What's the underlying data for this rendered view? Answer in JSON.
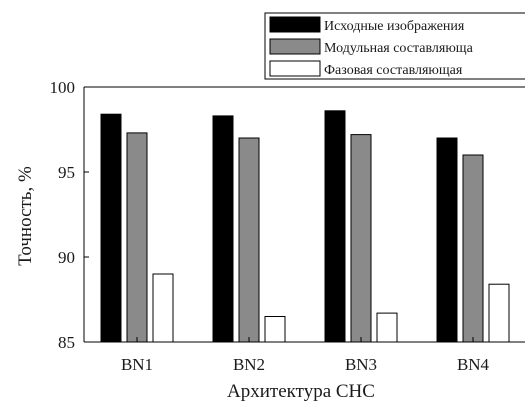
{
  "chart_data": {
    "type": "bar",
    "categories": [
      "BN1",
      "BN2",
      "BN3",
      "BN4"
    ],
    "series": [
      {
        "name": "Исходные изображения",
        "color": "#000000",
        "values": [
          98.4,
          98.3,
          98.6,
          97.0
        ]
      },
      {
        "name": "Модульная составляюща",
        "color": "#8a8a8a",
        "values": [
          97.3,
          97.0,
          97.2,
          96.0
        ]
      },
      {
        "name": "Фазовая составляющая",
        "color": "#ffffff",
        "values": [
          89.0,
          86.5,
          86.7,
          88.4
        ]
      }
    ],
    "xlabel": "Архитектура СНС",
    "ylabel": "Точность, %",
    "ylim": [
      85,
      100
    ],
    "yticks": [
      "85",
      "90",
      "95",
      "100"
    ],
    "legend_position": "top-right",
    "grid": false
  }
}
